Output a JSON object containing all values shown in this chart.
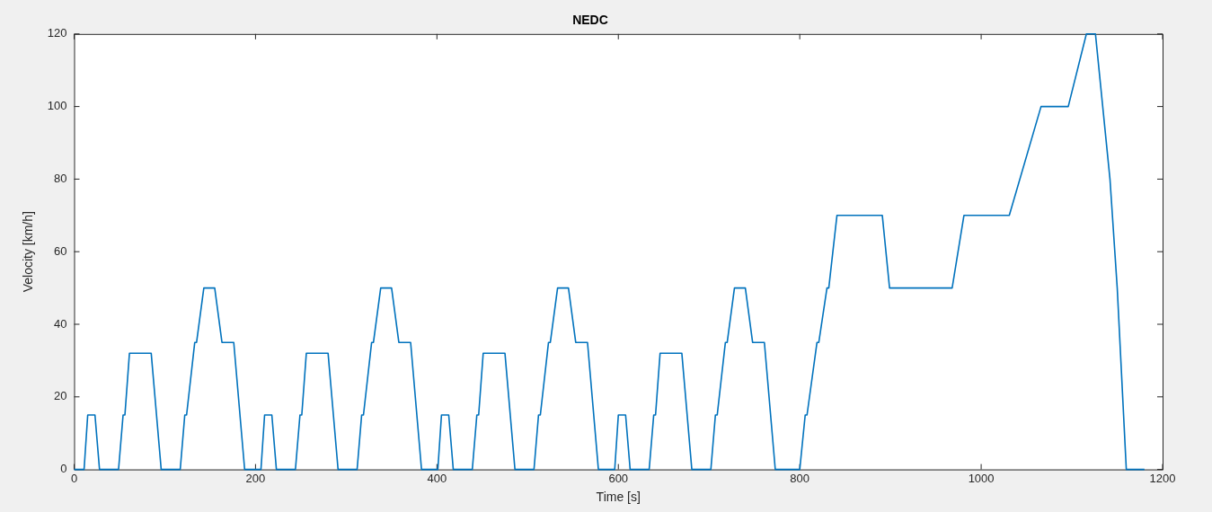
{
  "chart_data": {
    "type": "line",
    "title": "NEDC",
    "xlabel": "Time [s]",
    "ylabel": "Velocity [km/h]",
    "x": [
      0,
      11,
      15,
      23,
      28,
      49,
      54,
      56,
      61,
      85,
      96,
      117,
      122,
      124,
      133,
      135,
      143,
      155,
      163,
      176,
      188,
      195,
      206,
      210,
      218,
      223,
      244,
      249,
      251,
      256,
      280,
      291,
      312,
      317,
      319,
      328,
      330,
      338,
      350,
      358,
      371,
      383,
      390,
      401,
      405,
      413,
      418,
      439,
      444,
      446,
      451,
      475,
      486,
      507,
      512,
      514,
      523,
      525,
      533,
      545,
      553,
      566,
      578,
      585,
      596,
      600,
      608,
      613,
      634,
      639,
      641,
      646,
      670,
      681,
      702,
      707,
      709,
      718,
      720,
      728,
      740,
      748,
      761,
      773,
      780,
      800,
      806,
      808,
      819,
      821,
      830,
      832,
      841,
      891,
      899,
      968,
      981,
      1031,
      1066,
      1096,
      1116,
      1126,
      1142,
      1150,
      1160,
      1180
    ],
    "series": [
      {
        "color": "#0072bd",
        "values": [
          0,
          0,
          15,
          15,
          0,
          0,
          15,
          15,
          32,
          32,
          0,
          0,
          15,
          15,
          35,
          35,
          50,
          50,
          35,
          35,
          0,
          0,
          0,
          15,
          15,
          0,
          0,
          15,
          15,
          32,
          32,
          0,
          0,
          15,
          15,
          35,
          35,
          50,
          50,
          35,
          35,
          0,
          0,
          0,
          15,
          15,
          0,
          0,
          15,
          15,
          32,
          32,
          0,
          0,
          15,
          15,
          35,
          35,
          50,
          50,
          35,
          35,
          0,
          0,
          0,
          15,
          15,
          0,
          0,
          15,
          15,
          32,
          32,
          0,
          0,
          15,
          15,
          35,
          35,
          50,
          50,
          35,
          35,
          0,
          0,
          0,
          15,
          15,
          35,
          35,
          50,
          50,
          70,
          70,
          50,
          50,
          70,
          70,
          100,
          100,
          120,
          120,
          80,
          50,
          0,
          0
        ]
      }
    ],
    "xlim": [
      0,
      1200
    ],
    "xticks": [
      0,
      200,
      400,
      600,
      800,
      1000,
      1200
    ],
    "ylim": [
      0,
      120
    ],
    "yticks": [
      0,
      20,
      40,
      60,
      80,
      100,
      120
    ],
    "grid": false,
    "legend": false,
    "marker": "none",
    "line_style": "solid"
  }
}
